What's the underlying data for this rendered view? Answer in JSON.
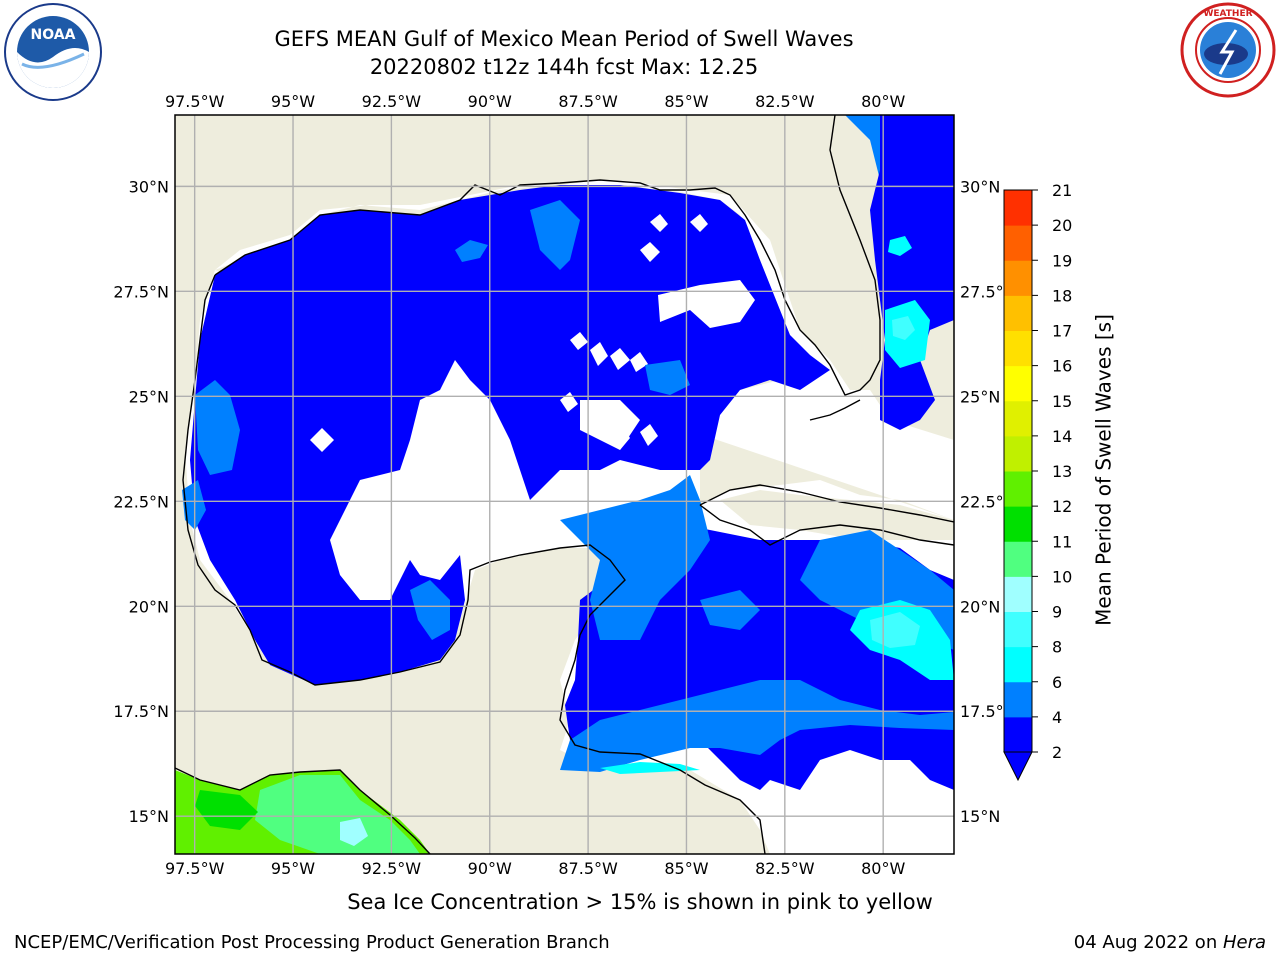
{
  "header": {
    "title_line1": "GEFS MEAN Gulf of Mexico Mean Period of Swell Waves",
    "title_line2": "20220802 t12z 144h fcst   Max: 12.25"
  },
  "logos": {
    "left": "noaa-logo",
    "right": "national-weather-service-logo"
  },
  "map": {
    "lon_labels": [
      "97.5°W",
      "95°W",
      "92.5°W",
      "90°W",
      "87.5°W",
      "85°W",
      "82.5°W",
      "80°W"
    ],
    "lat_labels": [
      "30°N",
      "27.5°N",
      "25°N",
      "22.5°N",
      "20°N",
      "17.5°N",
      "15°N"
    ],
    "lon_values": [
      -97.5,
      -95,
      -92.5,
      -90,
      -87.5,
      -85,
      -82.5,
      -80
    ],
    "lat_values": [
      30,
      27.5,
      25,
      22.5,
      20,
      17.5,
      15
    ],
    "lon_range": [
      -98,
      -78.2
    ],
    "lat_range": [
      14.1,
      31.7
    ],
    "colors": {
      "land": "#eeeddd",
      "water_nodata": "#ffffff",
      "grid": "#b0b0b0",
      "coast": "#000000"
    }
  },
  "colorbar": {
    "label": "Mean Period of Swell Waves [s]",
    "ticks": [
      "2",
      "4",
      "6",
      "8",
      "9",
      "10",
      "11",
      "12",
      "13",
      "14",
      "15",
      "16",
      "17",
      "18",
      "19",
      "20",
      "21"
    ],
    "colors": [
      "#0000ff",
      "#0080ff",
      "#00ffff",
      "#40ffff",
      "#a0ffff",
      "#50ff80",
      "#00e000",
      "#60f000",
      "#c0f000",
      "#e0f000",
      "#ffff00",
      "#ffe000",
      "#ffc000",
      "#ff9000",
      "#ff6000",
      "#ff3000",
      "#ff0000"
    ],
    "extend": "min"
  },
  "caption": "Sea Ice Concentration > 15% is shown in pink to yellow",
  "footer": {
    "left": "NCEP/EMC/Verification Post Processing Product Generation Branch",
    "right_date": "04 Aug 2022 on ",
    "right_host": "Hera"
  }
}
